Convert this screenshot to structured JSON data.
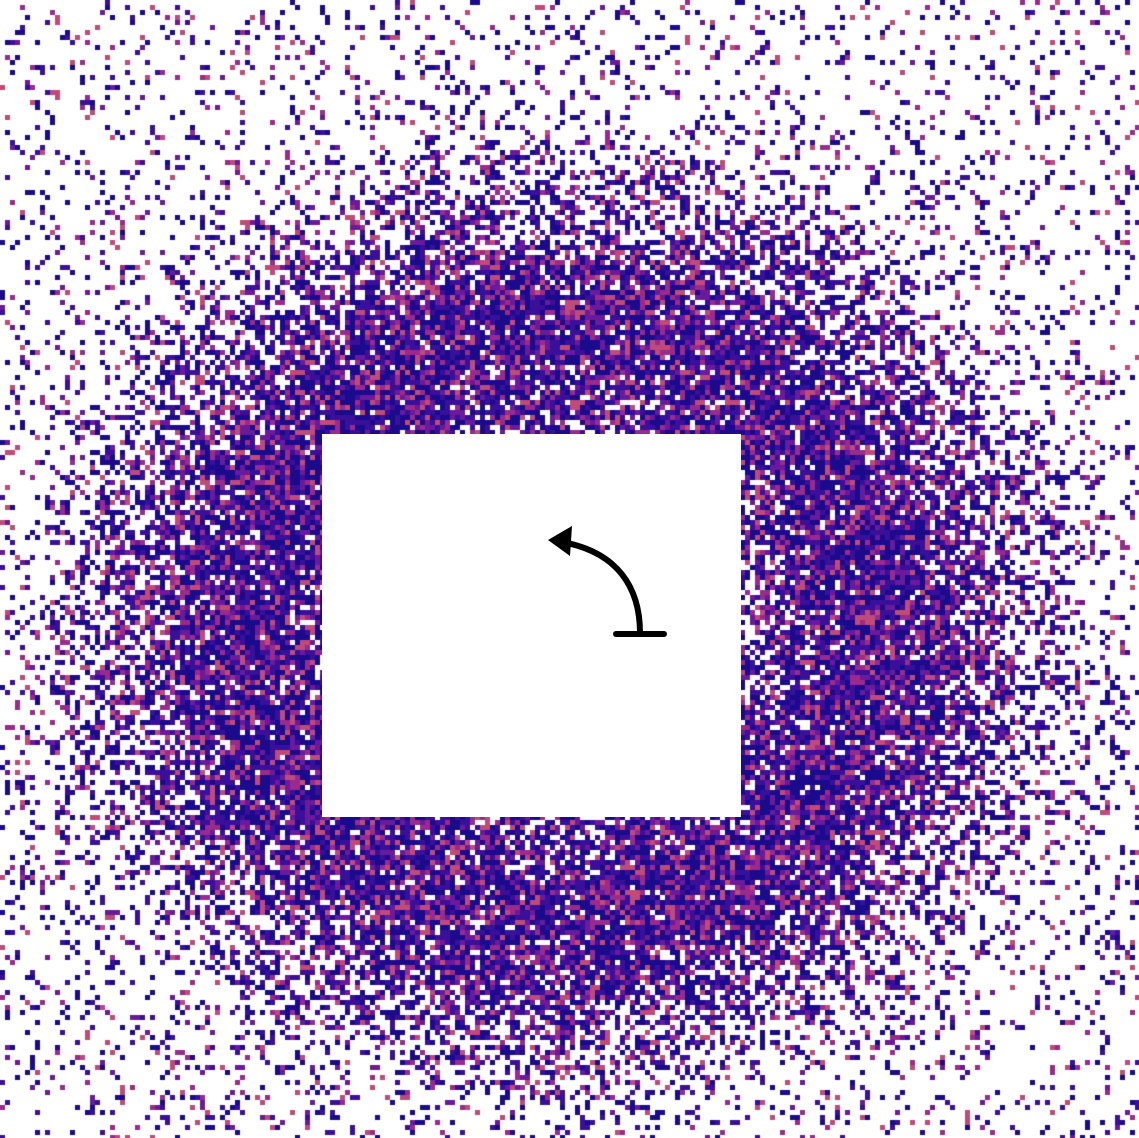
{
  "colors": {
    "background": "#ffffff",
    "dot_deep": "#1a0a8c",
    "dot_indigo": "#3a0f9a",
    "dot_violet": "#6a1a9a",
    "dot_magenta": "#9a2a8c",
    "dot_rose": "#c04a78",
    "symbol_stroke": "#000000"
  },
  "icons": {
    "center_symbol": "turn-left-arrow-icon"
  }
}
